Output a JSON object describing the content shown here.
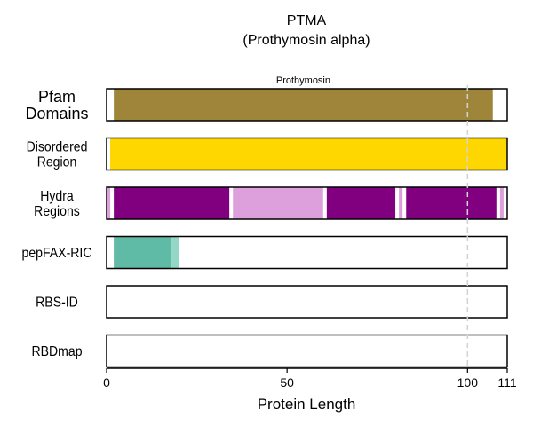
{
  "title": "PTMA",
  "subtitle": "(Prothymosin alpha)",
  "chart_data": {
    "type": "bar",
    "orientation": "horizontal-tracks",
    "title": "PTMA",
    "subtitle": "(Prothymosin alpha)",
    "xlabel": "Protein Length",
    "xlim": [
      0,
      111
    ],
    "xticks": [
      0,
      50,
      100,
      111
    ],
    "reference_line": {
      "x": 100,
      "style": "dashed",
      "color": "#d3d3d3"
    },
    "tracks": [
      {
        "label_lines": [
          "Pfam",
          "Domains"
        ],
        "segments": [
          {
            "start": 2,
            "end": 107,
            "color": "#9e853a",
            "label": "Prothymosin"
          }
        ]
      },
      {
        "label_lines": [
          "Disordered",
          "Region"
        ],
        "segments": [
          {
            "start": 1,
            "end": 111,
            "color": "#ffd700"
          }
        ]
      },
      {
        "label_lines": [
          "Hydra",
          "Regions"
        ],
        "segments": [
          {
            "start": 0,
            "end": 1,
            "color": "#dda0dd"
          },
          {
            "start": 2,
            "end": 34,
            "color": "#800080"
          },
          {
            "start": 35,
            "end": 60,
            "color": "#dda0dd"
          },
          {
            "start": 61,
            "end": 80,
            "color": "#800080"
          },
          {
            "start": 81,
            "end": 82,
            "color": "#dda0dd"
          },
          {
            "start": 83,
            "end": 108,
            "color": "#800080"
          },
          {
            "start": 109,
            "end": 110,
            "color": "#dda0dd"
          }
        ]
      },
      {
        "label_lines": [
          "pepFAX-RIC"
        ],
        "segments": [
          {
            "start": 2,
            "end": 18,
            "color": "#5fbaa6"
          },
          {
            "start": 18,
            "end": 20,
            "color": "#93d8c6"
          }
        ]
      },
      {
        "label_lines": [
          "RBS-ID"
        ],
        "segments": []
      },
      {
        "label_lines": [
          "RBDmap"
        ],
        "segments": []
      }
    ]
  }
}
